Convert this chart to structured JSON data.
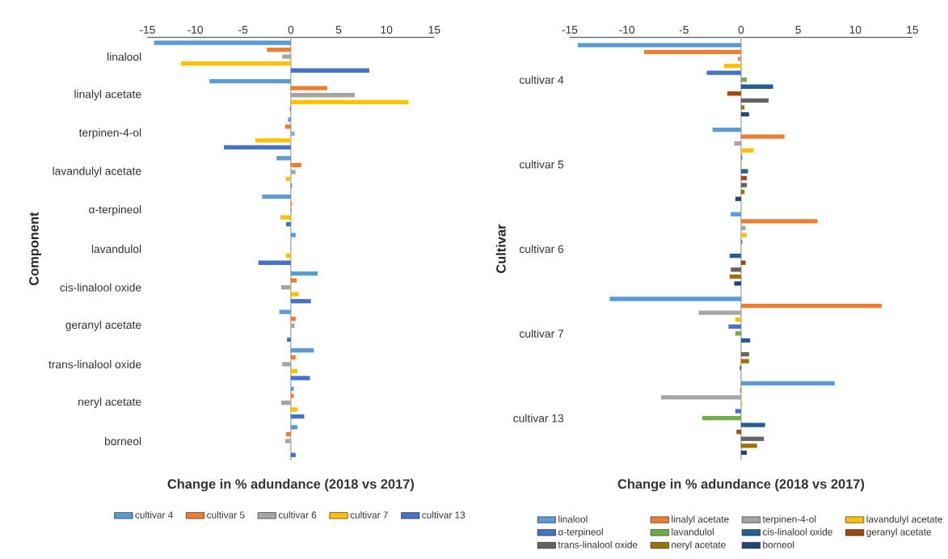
{
  "chart_data": [
    {
      "type": "bar",
      "orientation": "horizontal",
      "xlabel": "Change in % adundance (2018 vs 2017)",
      "ylabel": "Component",
      "xlim": [
        -15,
        15
      ],
      "xticks": [
        -15,
        -10,
        -5,
        0,
        5,
        10,
        15
      ],
      "legend": "bottom",
      "categories": [
        "linalool",
        "linalyl acetate",
        "terpinen-4-ol",
        "lavandulyl acetate",
        "α-terpineol",
        "lavandulol",
        "cis-linalool oxide",
        "geranyl acetate",
        "trans-linalool oxide",
        "neryl acetate",
        "borneol"
      ],
      "series": [
        {
          "name": "cultivar 4",
          "color": "#5b9bd5",
          "values": [
            -14.3,
            -8.5,
            -0.3,
            -1.5,
            -3.0,
            0.5,
            2.8,
            -1.2,
            2.4,
            0.3,
            0.7
          ]
        },
        {
          "name": "cultivar 5",
          "color": "#ed7d31",
          "values": [
            -2.5,
            3.8,
            -0.6,
            1.1,
            0.1,
            0,
            0.6,
            0.5,
            0.5,
            0.3,
            -0.5
          ]
        },
        {
          "name": "cultivar 6",
          "color": "#a5a5a5",
          "values": [
            -0.9,
            6.7,
            0.4,
            0.5,
            0.1,
            0,
            -1.0,
            0.4,
            -0.9,
            -1.0,
            -0.6
          ]
        },
        {
          "name": "cultivar 7",
          "color": "#ffc000",
          "values": [
            -11.5,
            12.3,
            -3.7,
            -0.5,
            -1.1,
            -0.5,
            0.8,
            0,
            0.7,
            0.7,
            -0.1
          ]
        },
        {
          "name": "cultivar 13",
          "color": "#4472c4",
          "values": [
            8.2,
            -0.1,
            -7.0,
            0.1,
            -0.5,
            -3.4,
            2.1,
            -0.4,
            2.0,
            1.4,
            0.5
          ]
        }
      ]
    },
    {
      "type": "bar",
      "orientation": "horizontal",
      "xlabel": "Change in % adundance (2018 vs 2017)",
      "ylabel": "Cultivar",
      "xlim": [
        -15,
        15
      ],
      "xticks": [
        -15,
        -10,
        -5,
        0,
        5,
        10,
        15
      ],
      "legend": "bottom",
      "categories": [
        "cultivar 4",
        "cultivar 5",
        "cultivar 6",
        "cultivar 7",
        "cultivar 13"
      ],
      "series": [
        {
          "name": "linalool",
          "color": "#5b9bd5",
          "values": [
            -14.3,
            -2.5,
            -0.9,
            -11.5,
            8.2
          ]
        },
        {
          "name": "linalyl acetate",
          "color": "#ed7d31",
          "values": [
            -8.5,
            3.8,
            6.7,
            12.3,
            -0.1
          ]
        },
        {
          "name": "terpinen-4-ol",
          "color": "#a5a5a5",
          "values": [
            -0.3,
            -0.6,
            0.4,
            -3.7,
            -7.0
          ]
        },
        {
          "name": "lavandulyl acetate",
          "color": "#ffc000",
          "values": [
            -1.5,
            1.1,
            0.5,
            -0.5,
            0.1
          ]
        },
        {
          "name": "α-terpineol",
          "color": "#4472c4",
          "values": [
            -3.0,
            0.1,
            0.1,
            -1.1,
            -0.5
          ]
        },
        {
          "name": "lavandulol",
          "color": "#70ad47",
          "values": [
            0.5,
            0,
            0,
            -0.5,
            -3.4
          ]
        },
        {
          "name": "cis-linalool oxide",
          "color": "#255e91",
          "values": [
            2.8,
            0.6,
            -1.0,
            0.8,
            2.1
          ]
        },
        {
          "name": "geranyl acetate",
          "color": "#9e480e",
          "values": [
            -1.2,
            0.5,
            0.4,
            0,
            -0.4
          ]
        },
        {
          "name": "trans-linalool oxide",
          "color": "#636363",
          "values": [
            2.4,
            0.5,
            -0.9,
            0.7,
            2.0
          ]
        },
        {
          "name": "neryl acetate",
          "color": "#997300",
          "values": [
            0.3,
            0.3,
            -1.0,
            0.7,
            1.4
          ]
        },
        {
          "name": "borneol",
          "color": "#264478",
          "values": [
            0.7,
            -0.5,
            -0.6,
            -0.1,
            0.5
          ]
        }
      ]
    }
  ]
}
